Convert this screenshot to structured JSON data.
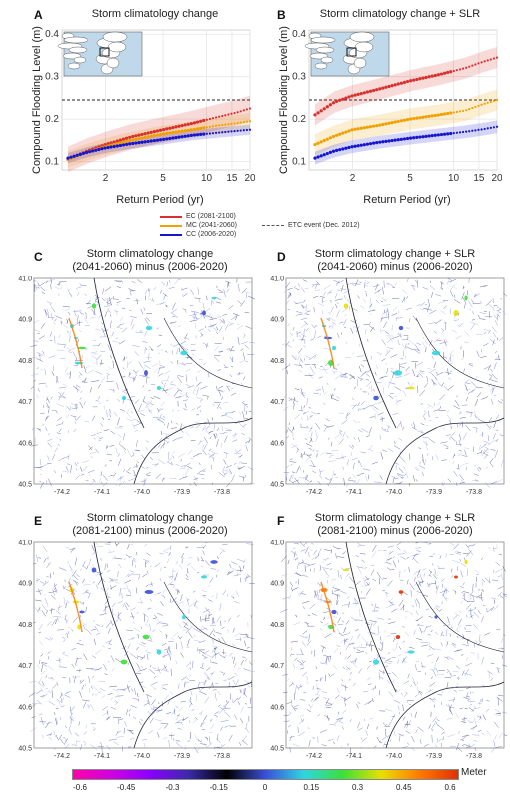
{
  "panels": {
    "A": {
      "letter": "A",
      "title": "Storm climatology change"
    },
    "B": {
      "letter": "B",
      "title": "Storm climatology change + SLR"
    },
    "C": {
      "letter": "C",
      "title_l1": "Storm climatology change",
      "title_l2": "(2041-2060) minus (2006-2020)"
    },
    "D": {
      "letter": "D",
      "title_l1": "Storm climatology change + SLR",
      "title_l2": "(2041-2060) minus (2006-2020)"
    },
    "E": {
      "letter": "E",
      "title_l1": "Storm climatology change",
      "title_l2": "(2081-2100) minus (2006-2020)"
    },
    "F": {
      "letter": "F",
      "title_l1": "Storm climatology change + SLR",
      "title_l2": "(2081-2100) minus (2006-2020)"
    }
  },
  "legend": {
    "ec": "EC (2081-2100)",
    "mc": "MC (2041-2060)",
    "cc": "CC (2006-2020)",
    "etc": "ETC event (Dec. 2012)"
  },
  "map_axes": {
    "lat_ticks": [
      "41.0",
      "40.9",
      "40.8",
      "40.7",
      "40.6",
      "40.5"
    ],
    "lon_ticks": [
      "-74.2",
      "-74.1",
      "-74.0",
      "-73.9",
      "-73.8"
    ]
  },
  "colorbar": {
    "unit": "Meter",
    "ticks": [
      "-0.6",
      "-0.45",
      "-0.3",
      "-0.15",
      "0",
      "0.15",
      "0.3",
      "0.45",
      "0.6"
    ],
    "colors": [
      "#ff00aa",
      "#d000e0",
      "#8a00ff",
      "#3a2aa8",
      "#000000",
      "#3a4fd8",
      "#2fd6e0",
      "#3ae03a",
      "#e8e000",
      "#ff7a00",
      "#e03000"
    ]
  },
  "chart_data": [
    {
      "type": "line",
      "panel": "A",
      "title": "Storm climatology change",
      "xlabel": "Return Period (yr)",
      "ylabel": "Compound Flooding Level (m)",
      "xscale": "log",
      "xlim": [
        1.0,
        20
      ],
      "ylim": [
        0.08,
        0.41
      ],
      "xticks": [
        2,
        5,
        10,
        15,
        20
      ],
      "yticks": [
        0.1,
        0.2,
        0.3,
        0.4
      ],
      "etc_event_level": 0.245,
      "grid": true,
      "series": [
        {
          "name": "EC (2081-2100)",
          "color": "#d9302c",
          "band": 0.03,
          "x": [
            1.1,
            1.5,
            2,
            3,
            5,
            8,
            12,
            16,
            20
          ],
          "y": [
            0.105,
            0.125,
            0.14,
            0.158,
            0.175,
            0.19,
            0.205,
            0.215,
            0.225
          ]
        },
        {
          "name": "MC (2041-2060)",
          "color": "#f0a000",
          "band": 0.02,
          "x": [
            1.1,
            1.5,
            2,
            3,
            5,
            8,
            12,
            16,
            20
          ],
          "y": [
            0.105,
            0.122,
            0.135,
            0.15,
            0.165,
            0.175,
            0.185,
            0.19,
            0.195
          ]
        },
        {
          "name": "CC (2006-2020)",
          "color": "#1515d0",
          "band": 0.012,
          "x": [
            1.1,
            1.5,
            2,
            3,
            5,
            8,
            12,
            16,
            20
          ],
          "y": [
            0.108,
            0.122,
            0.132,
            0.142,
            0.152,
            0.162,
            0.168,
            0.172,
            0.175
          ]
        }
      ]
    },
    {
      "type": "line",
      "panel": "B",
      "title": "Storm climatology change + SLR",
      "xlabel": "Return Period (yr)",
      "ylabel": "Compound Flooding Level (m)",
      "xscale": "log",
      "xlim": [
        1.0,
        20
      ],
      "ylim": [
        0.08,
        0.41
      ],
      "xticks": [
        2,
        5,
        10,
        15,
        20
      ],
      "yticks": [
        0.1,
        0.2,
        0.3,
        0.4
      ],
      "etc_event_level": 0.245,
      "grid": true,
      "series": [
        {
          "name": "EC (2081-2100)",
          "color": "#d9302c",
          "band": 0.025,
          "x": [
            1.1,
            1.5,
            2,
            3,
            5,
            8,
            12,
            16,
            20
          ],
          "y": [
            0.21,
            0.24,
            0.255,
            0.27,
            0.29,
            0.305,
            0.32,
            0.335,
            0.345
          ]
        },
        {
          "name": "MC (2041-2060)",
          "color": "#f0a000",
          "band": 0.025,
          "x": [
            1.1,
            1.5,
            2,
            3,
            5,
            8,
            12,
            16,
            20
          ],
          "y": [
            0.14,
            0.16,
            0.175,
            0.185,
            0.2,
            0.21,
            0.22,
            0.235,
            0.245
          ]
        },
        {
          "name": "CC (2006-2020)",
          "color": "#1515d0",
          "band": 0.015,
          "x": [
            1.1,
            1.5,
            2,
            3,
            5,
            8,
            12,
            16,
            20
          ],
          "y": [
            0.108,
            0.125,
            0.135,
            0.145,
            0.155,
            0.163,
            0.17,
            0.176,
            0.182
          ]
        }
      ]
    }
  ]
}
